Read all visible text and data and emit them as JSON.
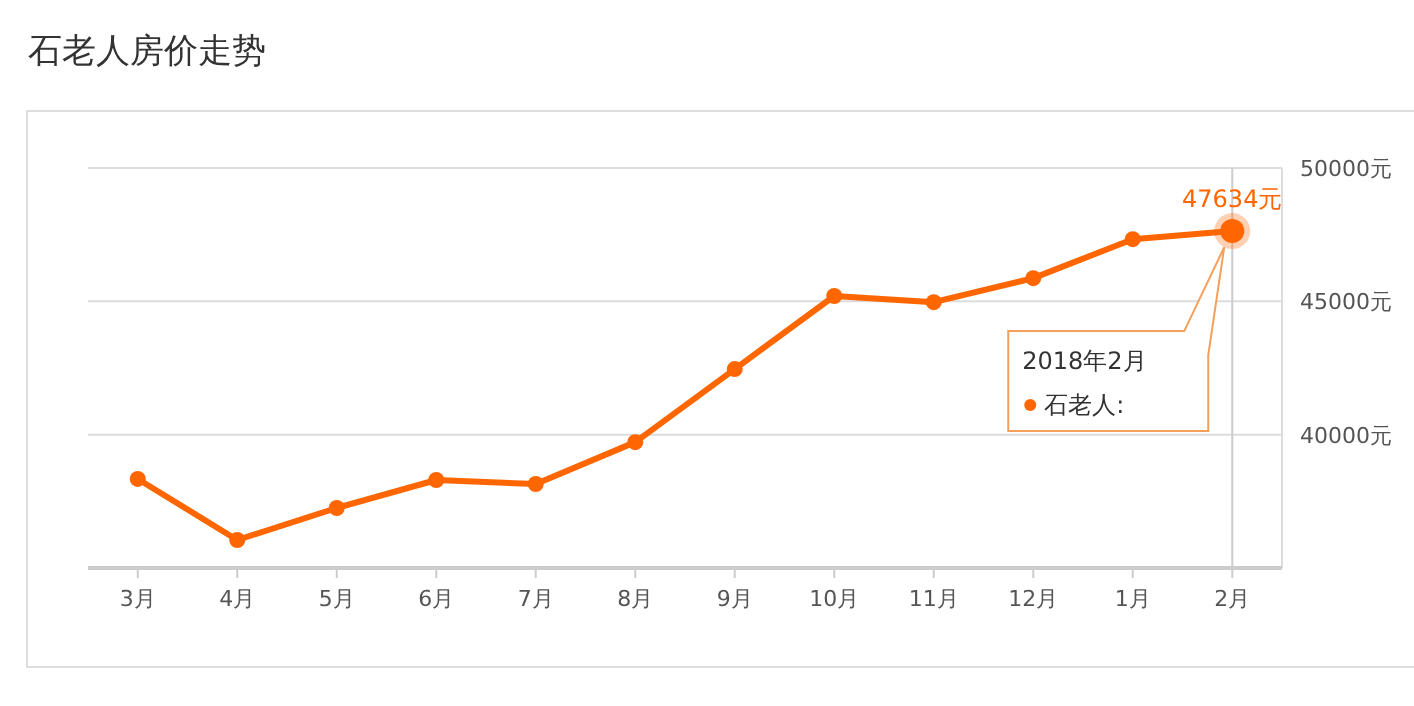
{
  "chart_data": {
    "type": "line",
    "title": "石老人房价走势",
    "categories": [
      "3月",
      "4月",
      "5月",
      "6月",
      "7月",
      "8月",
      "9月",
      "10月",
      "11月",
      "12月",
      "1月",
      "2月"
    ],
    "series": [
      {
        "name": "石老人:",
        "color": "#ff6600",
        "values": [
          38340,
          36050,
          37250,
          38300,
          38150,
          39720,
          42460,
          45200,
          44970,
          45870,
          47330,
          47634
        ],
        "value_labels": [
          null,
          null,
          null,
          null,
          null,
          null,
          null,
          null,
          null,
          null,
          null,
          "47634元"
        ]
      }
    ],
    "ylim": [
      35000,
      50000
    ],
    "yticks": [
      {
        "value": 35000,
        "label": null
      },
      {
        "value": 40000,
        "label": "40000元"
      },
      {
        "value": 45000,
        "label": "45000元"
      },
      {
        "value": 50000,
        "label": "50000元"
      }
    ],
    "grid": "y",
    "marker": "circle",
    "line_style": "solid",
    "ref_lines": [
      {
        "axis": "x",
        "value": "2月",
        "color": "#cccccc"
      }
    ],
    "annotations": [
      "2018年2月"
    ]
  }
}
